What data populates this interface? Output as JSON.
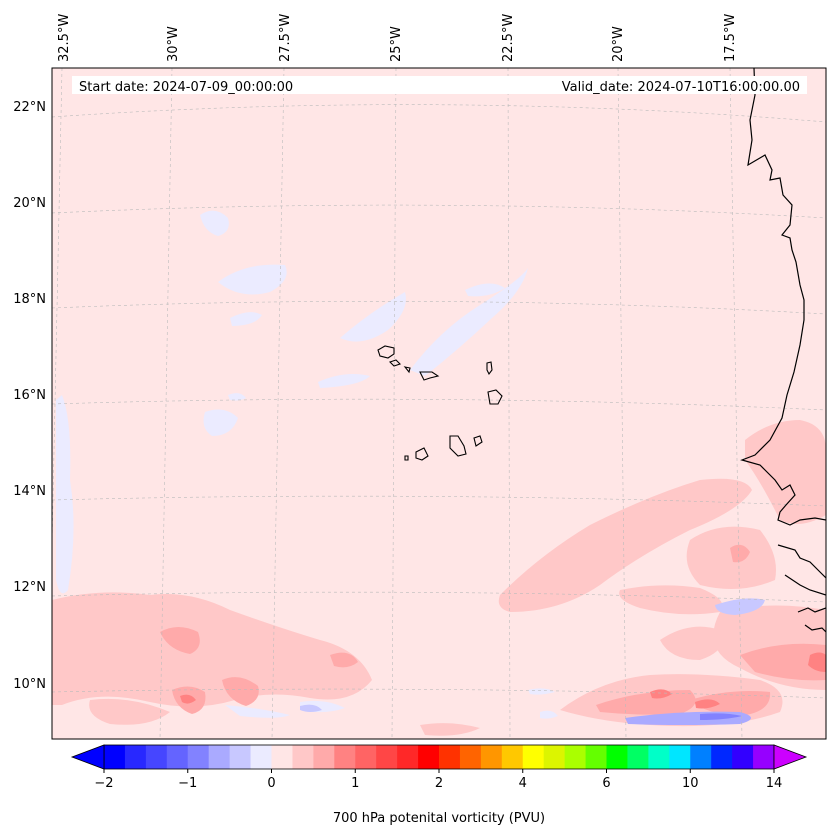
{
  "map": {
    "start_date": "Start date: 2024-07-09_00:00:00",
    "valid_date": "Valid_date: 2024-07-10T16:00:00.00",
    "lon_labels": [
      "32.5°W",
      "30°W",
      "27.5°W",
      "25°W",
      "22.5°W",
      "20°W",
      "17.5°W"
    ],
    "lat_labels": [
      "22°N",
      "20°N",
      "18°N",
      "16°N",
      "14°N",
      "12°N",
      "10°N"
    ],
    "background_color": "#ffe6e6"
  },
  "colorbar": {
    "label": "700 hPa potenital vorticity (PVU)",
    "tick_labels": [
      "−2",
      "−1",
      "0",
      "1",
      "2",
      "4",
      "6",
      "10",
      "14"
    ],
    "colors": [
      "#0000ff",
      "#2828ff",
      "#4646ff",
      "#6464ff",
      "#8282ff",
      "#aaaaff",
      "#c8c8ff",
      "#ebebff",
      "#ffe6e6",
      "#ffc8c8",
      "#ffaaaa",
      "#ff8282",
      "#ff6464",
      "#ff4646",
      "#ff2828",
      "#ff0000",
      "#ff3200",
      "#ff6400",
      "#ff9600",
      "#ffc800",
      "#ffff00",
      "#dcf500",
      "#aaff00",
      "#64ff00",
      "#00ff00",
      "#00ff64",
      "#00ffc8",
      "#00e6ff",
      "#0080ff",
      "#0028ff",
      "#3200ff",
      "#9600ff"
    ],
    "extend_low_color": "#0000ff",
    "extend_high_color": "#cc00ff"
  }
}
